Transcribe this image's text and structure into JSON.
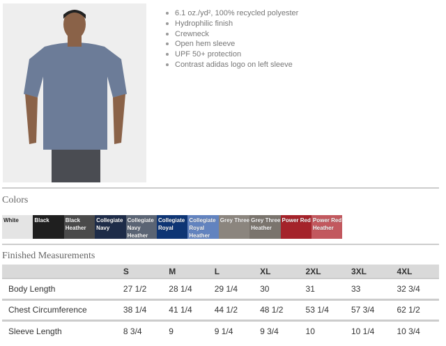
{
  "product": {
    "image_alt": "man wearing heather navy t-shirt"
  },
  "features": [
    "6.1 oz./yd², 100% recycled polyester",
    "Hydrophilic finish",
    "Crewneck",
    "Open hem sleeve",
    "UPF 50+ protection",
    "Contrast adidas logo on left sleeve"
  ],
  "colors": {
    "title": "Colors",
    "items": [
      {
        "name": "White",
        "hex": "#e4e4e4"
      },
      {
        "name": "Black",
        "hex": "#1f1f1f"
      },
      {
        "name": "Black Heather",
        "hex": "#4a4a4a"
      },
      {
        "name": "Collegiate Navy",
        "hex": "#1e2c48"
      },
      {
        "name": "Collegiate Navy Heather",
        "hex": "#5a6474"
      },
      {
        "name": "Collegiate Royal",
        "hex": "#0e3574"
      },
      {
        "name": "Collegiate Royal Heather",
        "hex": "#6283bf"
      },
      {
        "name": "Grey Three",
        "hex": "#8b857e"
      },
      {
        "name": "Grey Three Heather",
        "hex": "#7a746d"
      },
      {
        "name": "Power Red",
        "hex": "#a4232a"
      },
      {
        "name": "Power Red Heather",
        "hex": "#c2585e"
      }
    ]
  },
  "measurements": {
    "title": "Finished Measurements",
    "sizes": [
      "S",
      "M",
      "L",
      "XL",
      "2XL",
      "3XL",
      "4XL"
    ],
    "rows": [
      {
        "label": "Body Length",
        "values": [
          "27 1/2",
          "28 1/4",
          "29 1/4",
          "30",
          "31",
          "33",
          "32 3/4"
        ]
      },
      {
        "label": "Chest Circumference",
        "values": [
          "38 1/4",
          "41 1/4",
          "44 1/2",
          "48 1/2",
          "53 1/4",
          "57 3/4",
          "62 1/2"
        ]
      },
      {
        "label": "Sleeve Length",
        "values": [
          "8 3/4",
          "9",
          "9 1/4",
          "9 3/4",
          "10",
          "10 1/4",
          "10 3/4"
        ]
      }
    ]
  }
}
